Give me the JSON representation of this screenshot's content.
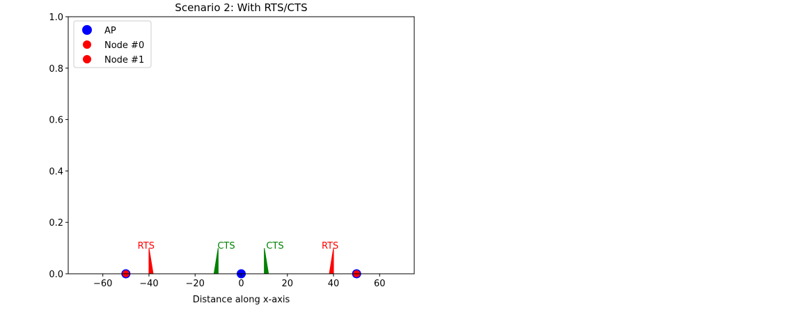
{
  "chart_data": {
    "type": "scatter",
    "title": "Scenario 2: With RTS/CTS",
    "xlabel": "Distance along x-axis",
    "ylabel": "",
    "xlim": [
      -75,
      75
    ],
    "ylim": [
      0,
      1.0
    ],
    "xticks": [
      -60,
      -40,
      -20,
      0,
      20,
      40,
      60
    ],
    "xtick_labels": [
      "−60",
      "−40",
      "−20",
      "0",
      "20",
      "40",
      "60"
    ],
    "yticks": [
      0.0,
      0.2,
      0.4,
      0.6,
      0.8,
      1.0
    ],
    "ytick_labels": [
      "0.0",
      "0.2",
      "0.4",
      "0.6",
      "0.8",
      "1.0"
    ],
    "grid": false,
    "legend_position": "top-left",
    "legend": [
      {
        "label": "AP",
        "color": "#0000ff",
        "marker": "circle-large"
      },
      {
        "label": "Node #0",
        "color": "#ff0000",
        "marker": "circle"
      },
      {
        "label": "Node #1",
        "color": "#ff0000",
        "marker": "circle"
      }
    ],
    "series": [
      {
        "name": "AP",
        "color": "#0000ff",
        "points": [
          {
            "x": -50,
            "y": 0
          },
          {
            "x": 0,
            "y": 0
          },
          {
            "x": 50,
            "y": 0
          }
        ]
      },
      {
        "name": "Node #0",
        "color": "#ff0000",
        "points": [
          {
            "x": -50,
            "y": 0
          }
        ]
      },
      {
        "name": "Node #1",
        "color": "#ff0000",
        "points": [
          {
            "x": 50,
            "y": 0
          }
        ]
      }
    ],
    "signals": [
      {
        "label": "RTS",
        "color": "#ff0000",
        "from_x": -50,
        "peak_x": -40,
        "peak_y": 0.1
      },
      {
        "label": "CTS",
        "color": "#008000",
        "from_x": 0,
        "peak_x": -10,
        "peak_y": 0.1
      },
      {
        "label": "CTS",
        "color": "#008000",
        "from_x": 0,
        "peak_x": 10,
        "peak_y": 0.1
      },
      {
        "label": "RTS",
        "color": "#ff0000",
        "from_x": 50,
        "peak_x": 40,
        "peak_y": 0.1
      }
    ]
  }
}
